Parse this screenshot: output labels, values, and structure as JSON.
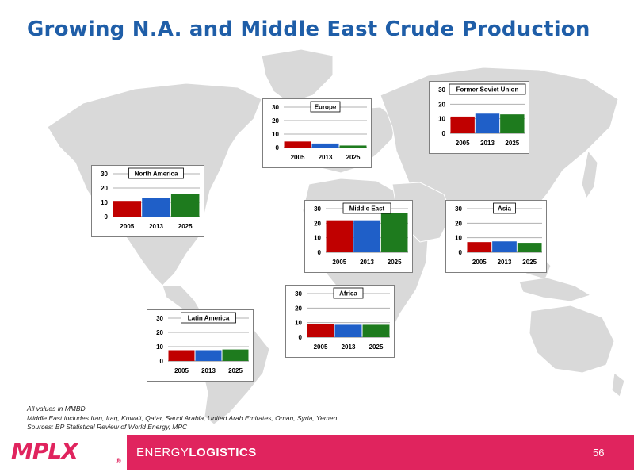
{
  "slide": {
    "title": "Growing N.A. and Middle East Crude Production",
    "page_number": "56"
  },
  "notes": [
    "All values in MMBD",
    "Middle East includes Iran, Iraq, Kuwait, Qatar, Saudi Arabia, United Arab Emirates, Oman, Syria, Yemen",
    "Sources:  BP Statistical Review of World Energy, MPC"
  ],
  "footer": {
    "logo_text": "MPLX",
    "registered_mark": "®",
    "tagline_light": "ENERGY",
    "tagline_bold": "LOGISTICS"
  },
  "colors": {
    "title": "#1f5ea8",
    "footer": "#e0245e",
    "map_land": "#d9d9d9",
    "bar_2005": "#c00000",
    "bar_2013": "#1f5fc8",
    "bar_2025": "#1e7b1e"
  },
  "chart_data": [
    {
      "type": "bar",
      "title": "Europe",
      "categories": [
        "2005",
        "2013",
        "2025"
      ],
      "values": [
        4.5,
        3,
        1.5
      ],
      "ylim": [
        0,
        30
      ],
      "yticks": [
        0,
        10,
        20,
        30
      ],
      "grid": true
    },
    {
      "type": "bar",
      "title": "Former Soviet Union",
      "categories": [
        "2005",
        "2013",
        "2025"
      ],
      "values": [
        11.5,
        13.5,
        13
      ],
      "ylim": [
        0,
        30
      ],
      "yticks": [
        0,
        10,
        20,
        30
      ],
      "grid": true
    },
    {
      "type": "bar",
      "title": "North America",
      "categories": [
        "2005",
        "2013",
        "2025"
      ],
      "values": [
        11,
        13,
        16
      ],
      "ylim": [
        0,
        30
      ],
      "yticks": [
        0,
        10,
        20,
        30
      ],
      "grid": true
    },
    {
      "type": "bar",
      "title": "Middle East",
      "categories": [
        "2005",
        "2013",
        "2025"
      ],
      "values": [
        22,
        22,
        27
      ],
      "ylim": [
        0,
        30
      ],
      "yticks": [
        0,
        10,
        20,
        30
      ],
      "grid": true
    },
    {
      "type": "bar",
      "title": "Asia",
      "categories": [
        "2005",
        "2013",
        "2025"
      ],
      "values": [
        7,
        7.5,
        6.5
      ],
      "ylim": [
        0,
        30
      ],
      "yticks": [
        0,
        10,
        20,
        30
      ],
      "grid": true
    },
    {
      "type": "bar",
      "title": "Africa",
      "categories": [
        "2005",
        "2013",
        "2025"
      ],
      "values": [
        9,
        8.5,
        8.5
      ],
      "ylim": [
        0,
        30
      ],
      "yticks": [
        0,
        10,
        20,
        30
      ],
      "grid": true
    },
    {
      "type": "bar",
      "title": "Latin America",
      "categories": [
        "2005",
        "2013",
        "2025"
      ],
      "values": [
        7.5,
        7.5,
        8
      ],
      "ylim": [
        0,
        30
      ],
      "yticks": [
        0,
        10,
        20,
        30
      ],
      "grid": true
    }
  ]
}
